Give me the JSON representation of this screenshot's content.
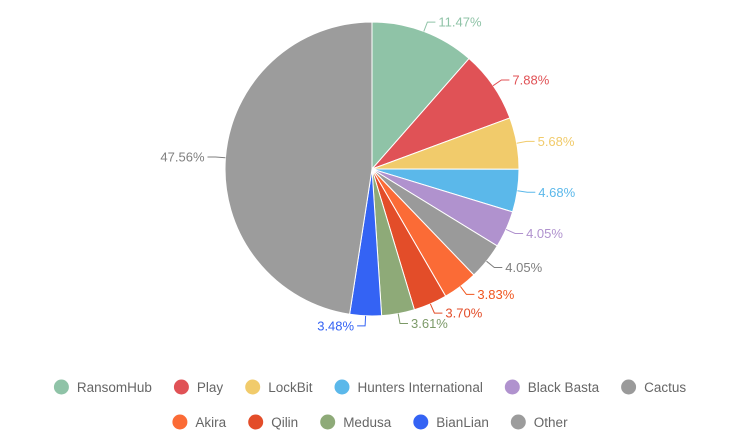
{
  "chart_data": {
    "type": "pie",
    "title": "",
    "legend_position": "bottom",
    "slices": [
      {
        "label": "RansomHub",
        "value": 11.47,
        "value_label": "11.47%",
        "color": "#8fc3a7",
        "label_color": "#8fc3a7"
      },
      {
        "label": "Play",
        "value": 7.88,
        "value_label": "7.88%",
        "color": "#e05256",
        "label_color": "#e05256"
      },
      {
        "label": "LockBit",
        "value": 5.68,
        "value_label": "5.68%",
        "color": "#f1cb6b",
        "label_color": "#f1cb6b"
      },
      {
        "label": "Hunters International",
        "value": 4.68,
        "value_label": "4.68%",
        "color": "#5bb8ea",
        "label_color": "#5bb8ea"
      },
      {
        "label": "Black Basta",
        "value": 4.05,
        "value_label": "4.05%",
        "color": "#b092ce",
        "label_color": "#b092ce"
      },
      {
        "label": "Cactus",
        "value": 4.05,
        "value_label": "4.05%",
        "color": "#9a9a9a",
        "label_color": "#7f7f7f"
      },
      {
        "label": "Akira",
        "value": 3.83,
        "value_label": "3.83%",
        "color": "#fb6b36",
        "label_color": "#f0561f"
      },
      {
        "label": "Qilin",
        "value": 3.7,
        "value_label": "3.70%",
        "color": "#e34d29",
        "label_color": "#e34d29"
      },
      {
        "label": "Medusa",
        "value": 3.61,
        "value_label": "3.61%",
        "color": "#8eaa78",
        "label_color": "#7c9a68"
      },
      {
        "label": "BianLian",
        "value": 3.48,
        "value_label": "3.48%",
        "color": "#3463f4",
        "label_color": "#3463f4"
      },
      {
        "label": "Other",
        "value": 47.56,
        "value_label": "47.56%",
        "color": "#9c9c9c",
        "label_color": "#7f7f7f"
      }
    ]
  }
}
